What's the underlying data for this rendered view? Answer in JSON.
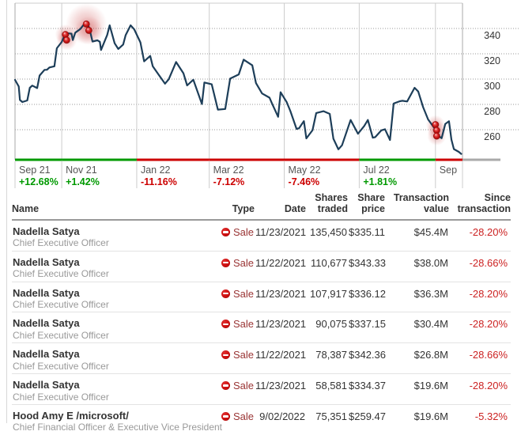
{
  "chart_data": {
    "type": "line",
    "title": "",
    "xlabel": "",
    "ylabel": "",
    "x_range": [
      "2021-09-24",
      "2022-09-23"
    ],
    "ylim": [
      236,
      360
    ],
    "y_ticks": [
      340,
      320,
      300,
      280,
      260
    ],
    "grid": {
      "horizontal": "dotted",
      "vertical": "solid"
    },
    "legend_position": "none",
    "series": [
      {
        "name": "share-price",
        "points": [
          [
            "2021-09-24",
            299.4
          ],
          [
            "2021-09-27",
            294.2
          ],
          [
            "2021-09-28",
            283.5
          ],
          [
            "2021-09-30",
            281.9
          ],
          [
            "2021-10-04",
            283.1
          ],
          [
            "2021-10-06",
            293.1
          ],
          [
            "2021-10-08",
            294.9
          ],
          [
            "2021-10-12",
            292.9
          ],
          [
            "2021-10-14",
            302.8
          ],
          [
            "2021-10-18",
            307.3
          ],
          [
            "2021-10-20",
            307.4
          ],
          [
            "2021-10-22",
            309.2
          ],
          [
            "2021-10-26",
            310.1
          ],
          [
            "2021-10-28",
            324.4
          ],
          [
            "2021-11-01",
            329.4
          ],
          [
            "2021-11-04",
            336.4
          ],
          [
            "2021-11-09",
            335.9
          ],
          [
            "2021-11-10",
            330.8
          ],
          [
            "2021-11-12",
            336.7
          ],
          [
            "2021-11-16",
            339.5
          ],
          [
            "2021-11-19",
            343.1
          ],
          [
            "2021-11-22",
            344.6
          ],
          [
            "2021-11-24",
            337.9
          ],
          [
            "2021-11-26",
            329.7
          ],
          [
            "2021-11-30",
            330.6
          ],
          [
            "2021-12-02",
            329.5
          ],
          [
            "2021-12-03",
            323.0
          ],
          [
            "2021-12-08",
            334.9
          ],
          [
            "2021-12-10",
            342.5
          ],
          [
            "2021-12-14",
            328.3
          ],
          [
            "2021-12-17",
            323.8
          ],
          [
            "2021-12-21",
            327.3
          ],
          [
            "2021-12-23",
            334.7
          ],
          [
            "2021-12-27",
            342.5
          ],
          [
            "2021-12-30",
            339.3
          ],
          [
            "2022-01-04",
            329.0
          ],
          [
            "2022-01-07",
            314.0
          ],
          [
            "2022-01-12",
            318.3
          ],
          [
            "2022-01-14",
            310.2
          ],
          [
            "2022-01-19",
            303.3
          ],
          [
            "2022-01-24",
            296.4
          ],
          [
            "2022-01-27",
            299.8
          ],
          [
            "2022-02-02",
            313.5
          ],
          [
            "2022-02-08",
            304.6
          ],
          [
            "2022-02-11",
            295.0
          ],
          [
            "2022-02-16",
            299.5
          ],
          [
            "2022-02-23",
            280.3
          ],
          [
            "2022-02-25",
            297.3
          ],
          [
            "2022-03-03",
            295.9
          ],
          [
            "2022-03-08",
            275.9
          ],
          [
            "2022-03-14",
            276.4
          ],
          [
            "2022-03-18",
            300.4
          ],
          [
            "2022-03-25",
            303.7
          ],
          [
            "2022-03-29",
            315.4
          ],
          [
            "2022-04-05",
            310.9
          ],
          [
            "2022-04-08",
            296.8
          ],
          [
            "2022-04-13",
            288.6
          ],
          [
            "2022-04-19",
            285.3
          ],
          [
            "2022-04-21",
            280.8
          ],
          [
            "2022-04-26",
            270.2
          ],
          [
            "2022-04-28",
            289.6
          ],
          [
            "2022-05-03",
            281.8
          ],
          [
            "2022-05-06",
            274.7
          ],
          [
            "2022-05-11",
            260.6
          ],
          [
            "2022-05-13",
            261.1
          ],
          [
            "2022-05-17",
            266.8
          ],
          [
            "2022-05-19",
            253.1
          ],
          [
            "2022-05-24",
            259.6
          ],
          [
            "2022-05-27",
            273.2
          ],
          [
            "2022-06-02",
            274.6
          ],
          [
            "2022-06-07",
            272.5
          ],
          [
            "2022-06-10",
            252.9
          ],
          [
            "2022-06-14",
            244.5
          ],
          [
            "2022-06-17",
            247.7
          ],
          [
            "2022-06-24",
            267.7
          ],
          [
            "2022-06-30",
            256.8
          ],
          [
            "2022-07-05",
            262.9
          ],
          [
            "2022-07-08",
            267.7
          ],
          [
            "2022-07-12",
            253.7
          ],
          [
            "2022-07-14",
            254.1
          ],
          [
            "2022-07-19",
            259.5
          ],
          [
            "2022-07-22",
            260.4
          ],
          [
            "2022-07-26",
            251.9
          ],
          [
            "2022-07-29",
            280.7
          ],
          [
            "2022-08-03",
            282.5
          ],
          [
            "2022-08-05",
            282.9
          ],
          [
            "2022-08-09",
            282.3
          ],
          [
            "2022-08-15",
            293.1
          ],
          [
            "2022-08-18",
            290.2
          ],
          [
            "2022-08-22",
            277.8
          ],
          [
            "2022-08-26",
            268.1
          ],
          [
            "2022-08-31",
            261.5
          ],
          [
            "2022-09-02",
            256.1
          ],
          [
            "2022-09-06",
            253.3
          ],
          [
            "2022-09-09",
            264.5
          ],
          [
            "2022-09-12",
            266.7
          ],
          [
            "2022-09-14",
            252.2
          ],
          [
            "2022-09-16",
            244.7
          ],
          [
            "2022-09-20",
            242.5
          ],
          [
            "2022-09-22",
            240.9
          ]
        ]
      }
    ],
    "sale_markers": [
      {
        "date": "2021-11-04",
        "price": 335.2,
        "glow": 13
      },
      {
        "date": "2021-11-05",
        "price": 330.8,
        "glow": 13
      },
      {
        "date": "2021-11-21",
        "price": 343.5,
        "glow": 26
      },
      {
        "date": "2021-11-23",
        "price": 338.5,
        "glow": 18
      },
      {
        "date": "2022-09-01",
        "price": 264.0,
        "glow": 12
      },
      {
        "date": "2022-09-02",
        "price": 259.5,
        "glow": 12
      },
      {
        "date": "2022-09-02",
        "price": 255.0,
        "glow": 12
      }
    ],
    "periods": [
      {
        "label": "Sep 21",
        "change": "+12.68%",
        "direction": "up",
        "start": "2021-09-24"
      },
      {
        "label": "Nov 21",
        "change": "+1.42%",
        "direction": "up",
        "start": "2021-11-01"
      },
      {
        "label": "Jan 22",
        "change": "-11.16%",
        "direction": "down",
        "start": "2022-01-01"
      },
      {
        "label": "Mar 22",
        "change": "-7.12%",
        "direction": "down",
        "start": "2022-03-01"
      },
      {
        "label": "May 22",
        "change": "-7.46%",
        "direction": "down",
        "start": "2022-05-01"
      },
      {
        "label": "Jul 22",
        "change": "+1.81%",
        "direction": "up",
        "start": "2022-07-01"
      },
      {
        "label": "Sep",
        "change": "",
        "direction": "down",
        "start": "2022-09-01"
      }
    ],
    "colors": {
      "line": "#1d3e59",
      "up": "#009900",
      "down": "#cc0000",
      "vgrid": "#cccccc",
      "hgrid_dotted": "#999999",
      "plot_border": "#aaaaaa",
      "axis_trailing": "#aaaaaa",
      "month_label": "#555555",
      "y_label": "#333333",
      "marker": "#cc1111"
    }
  },
  "table": {
    "columns": [
      {
        "id": "name",
        "lines": [
          "Name"
        ],
        "align": "left"
      },
      {
        "id": "type",
        "lines": [
          "Type"
        ],
        "align": "right"
      },
      {
        "id": "date",
        "lines": [
          "Date"
        ],
        "align": "right"
      },
      {
        "id": "shares",
        "lines": [
          "Shares",
          "traded"
        ],
        "align": "right"
      },
      {
        "id": "price",
        "lines": [
          "Share",
          "price"
        ],
        "align": "right"
      },
      {
        "id": "value",
        "lines": [
          "Transaction",
          "value"
        ],
        "align": "right"
      },
      {
        "id": "since",
        "lines": [
          "Since",
          "transaction"
        ],
        "align": "right"
      }
    ],
    "rows": [
      {
        "name": "Nadella Satya",
        "title": "Chief Executive Officer",
        "type": "Sale",
        "date": "11/23/2021",
        "shares": "135,450",
        "price": "$335.11",
        "value": "$45.4M",
        "since": "-28.20%"
      },
      {
        "name": "Nadella Satya",
        "title": "Chief Executive Officer",
        "type": "Sale",
        "date": "11/22/2021",
        "shares": "110,677",
        "price": "$343.33",
        "value": "$38.0M",
        "since": "-28.66%"
      },
      {
        "name": "Nadella Satya",
        "title": "Chief Executive Officer",
        "type": "Sale",
        "date": "11/23/2021",
        "shares": "107,917",
        "price": "$336.12",
        "value": "$36.3M",
        "since": "-28.20%"
      },
      {
        "name": "Nadella Satya",
        "title": "Chief Executive Officer",
        "type": "Sale",
        "date": "11/23/2021",
        "shares": "90,075",
        "price": "$337.15",
        "value": "$30.4M",
        "since": "-28.20%"
      },
      {
        "name": "Nadella Satya",
        "title": "Chief Executive Officer",
        "type": "Sale",
        "date": "11/22/2021",
        "shares": "78,387",
        "price": "$342.36",
        "value": "$26.8M",
        "since": "-28.66%"
      },
      {
        "name": "Nadella Satya",
        "title": "Chief Executive Officer",
        "type": "Sale",
        "date": "11/23/2021",
        "shares": "58,581",
        "price": "$334.37",
        "value": "$19.6M",
        "since": "-28.20%"
      },
      {
        "name": "Hood Amy E /microsoft/",
        "title": "Chief Financial Officer & Executive Vice President",
        "type": "Sale",
        "date": "9/02/2022",
        "shares": "75,351",
        "price": "$259.47",
        "value": "$19.6M",
        "since": "-5.32%"
      }
    ]
  }
}
